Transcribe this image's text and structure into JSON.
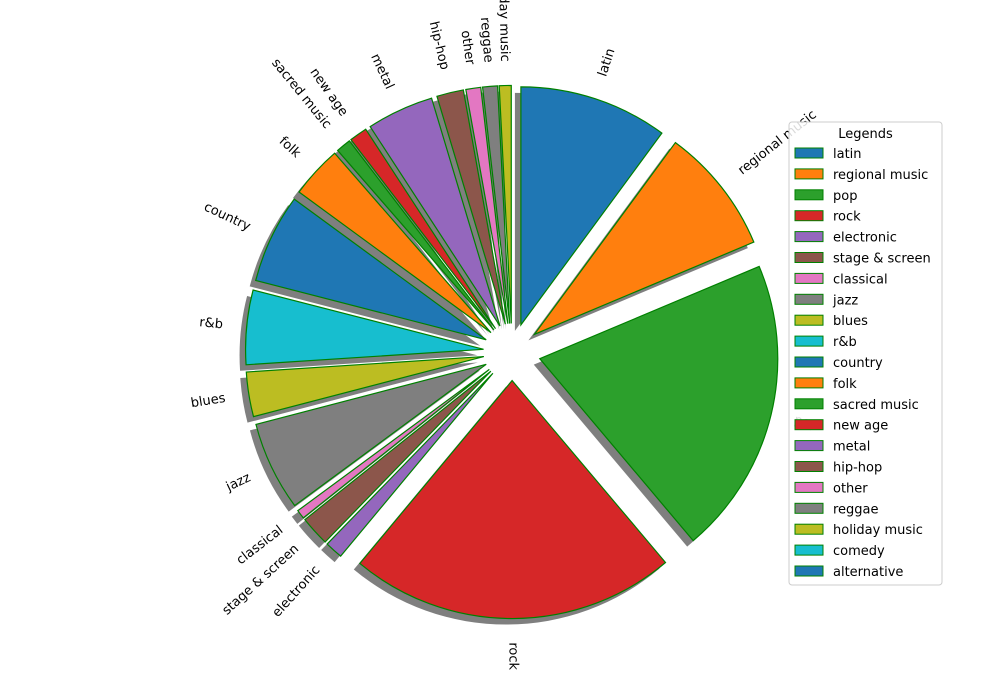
{
  "chart_data": {
    "type": "pie",
    "title": "",
    "categories": [
      "latin",
      "regional music",
      "pop",
      "rock",
      "electronic",
      "stage & screen",
      "classical",
      "jazz",
      "blues",
      "r&b",
      "country",
      "folk",
      "sacred music",
      "new age",
      "metal",
      "hip-hop",
      "other",
      "reggae",
      "holiday music",
      "comedy",
      "alternative"
    ],
    "values": [
      10.0,
      8.5,
      20.0,
      22.0,
      1.2,
      2.0,
      0.6,
      6.0,
      3.0,
      5.0,
      6.0,
      3.5,
      1.0,
      1.2,
      4.5,
      1.8,
      1.0,
      1.0,
      0.8,
      0.0,
      0.0
    ],
    "colors": [
      "#1f77b4",
      "#ff7f0e",
      "#2ca02c",
      "#d62728",
      "#9467bd",
      "#8c564b",
      "#e377c2",
      "#7f7f7f",
      "#bcbd22",
      "#17becf",
      "#1f77b4",
      "#ff7f0e",
      "#2ca02c",
      "#d62728",
      "#9467bd",
      "#8c564b",
      "#e377c2",
      "#7f7f7f",
      "#bcbd22",
      "#17becf",
      "#1f77b4"
    ],
    "edge_color": "#008000",
    "shadow": true,
    "start_angle": 90,
    "direction": "clockwise",
    "label_rotation": "radial",
    "legend": {
      "title": "Legends",
      "placement": "right"
    }
  }
}
